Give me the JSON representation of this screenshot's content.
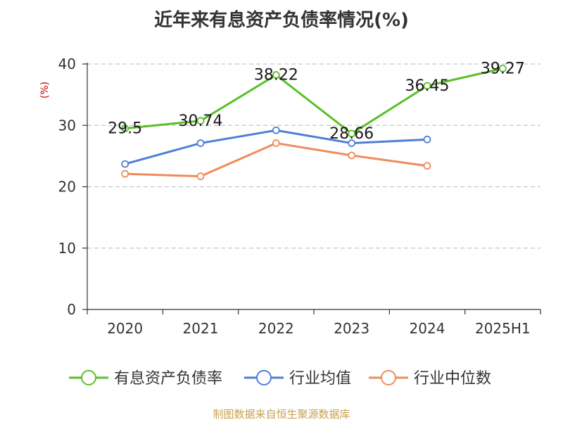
{
  "page_title": "近年来有息资产负债率情况(%)",
  "source": "制图数据来自恒生聚源数据库",
  "chart_data": {
    "type": "line",
    "title": "近年来有息资产负债率情况(%)",
    "ylabel": "(%)",
    "xlabel": "",
    "categories": [
      "2020",
      "2021",
      "2022",
      "2023",
      "2024",
      "2025H1"
    ],
    "ylim": [
      0,
      40
    ],
    "yticks": [
      0,
      10,
      20,
      30,
      40
    ],
    "grid": true,
    "legend_position": "bottom",
    "series": [
      {
        "name": "有息资产负债率",
        "color": "#5cbf2a",
        "values": [
          29.5,
          30.74,
          38.22,
          28.66,
          36.45,
          39.27
        ],
        "labels": [
          "29.5",
          "30.74",
          "38.22",
          "28.66",
          "36.45",
          "39.27"
        ]
      },
      {
        "name": "行业均值",
        "color": "#4e7fd6",
        "values": [
          23.7,
          27.1,
          29.2,
          27.1,
          27.7,
          null
        ]
      },
      {
        "name": "行业中位数",
        "color": "#f08b5a",
        "values": [
          22.1,
          21.7,
          27.1,
          25.1,
          23.4,
          null
        ]
      }
    ]
  }
}
